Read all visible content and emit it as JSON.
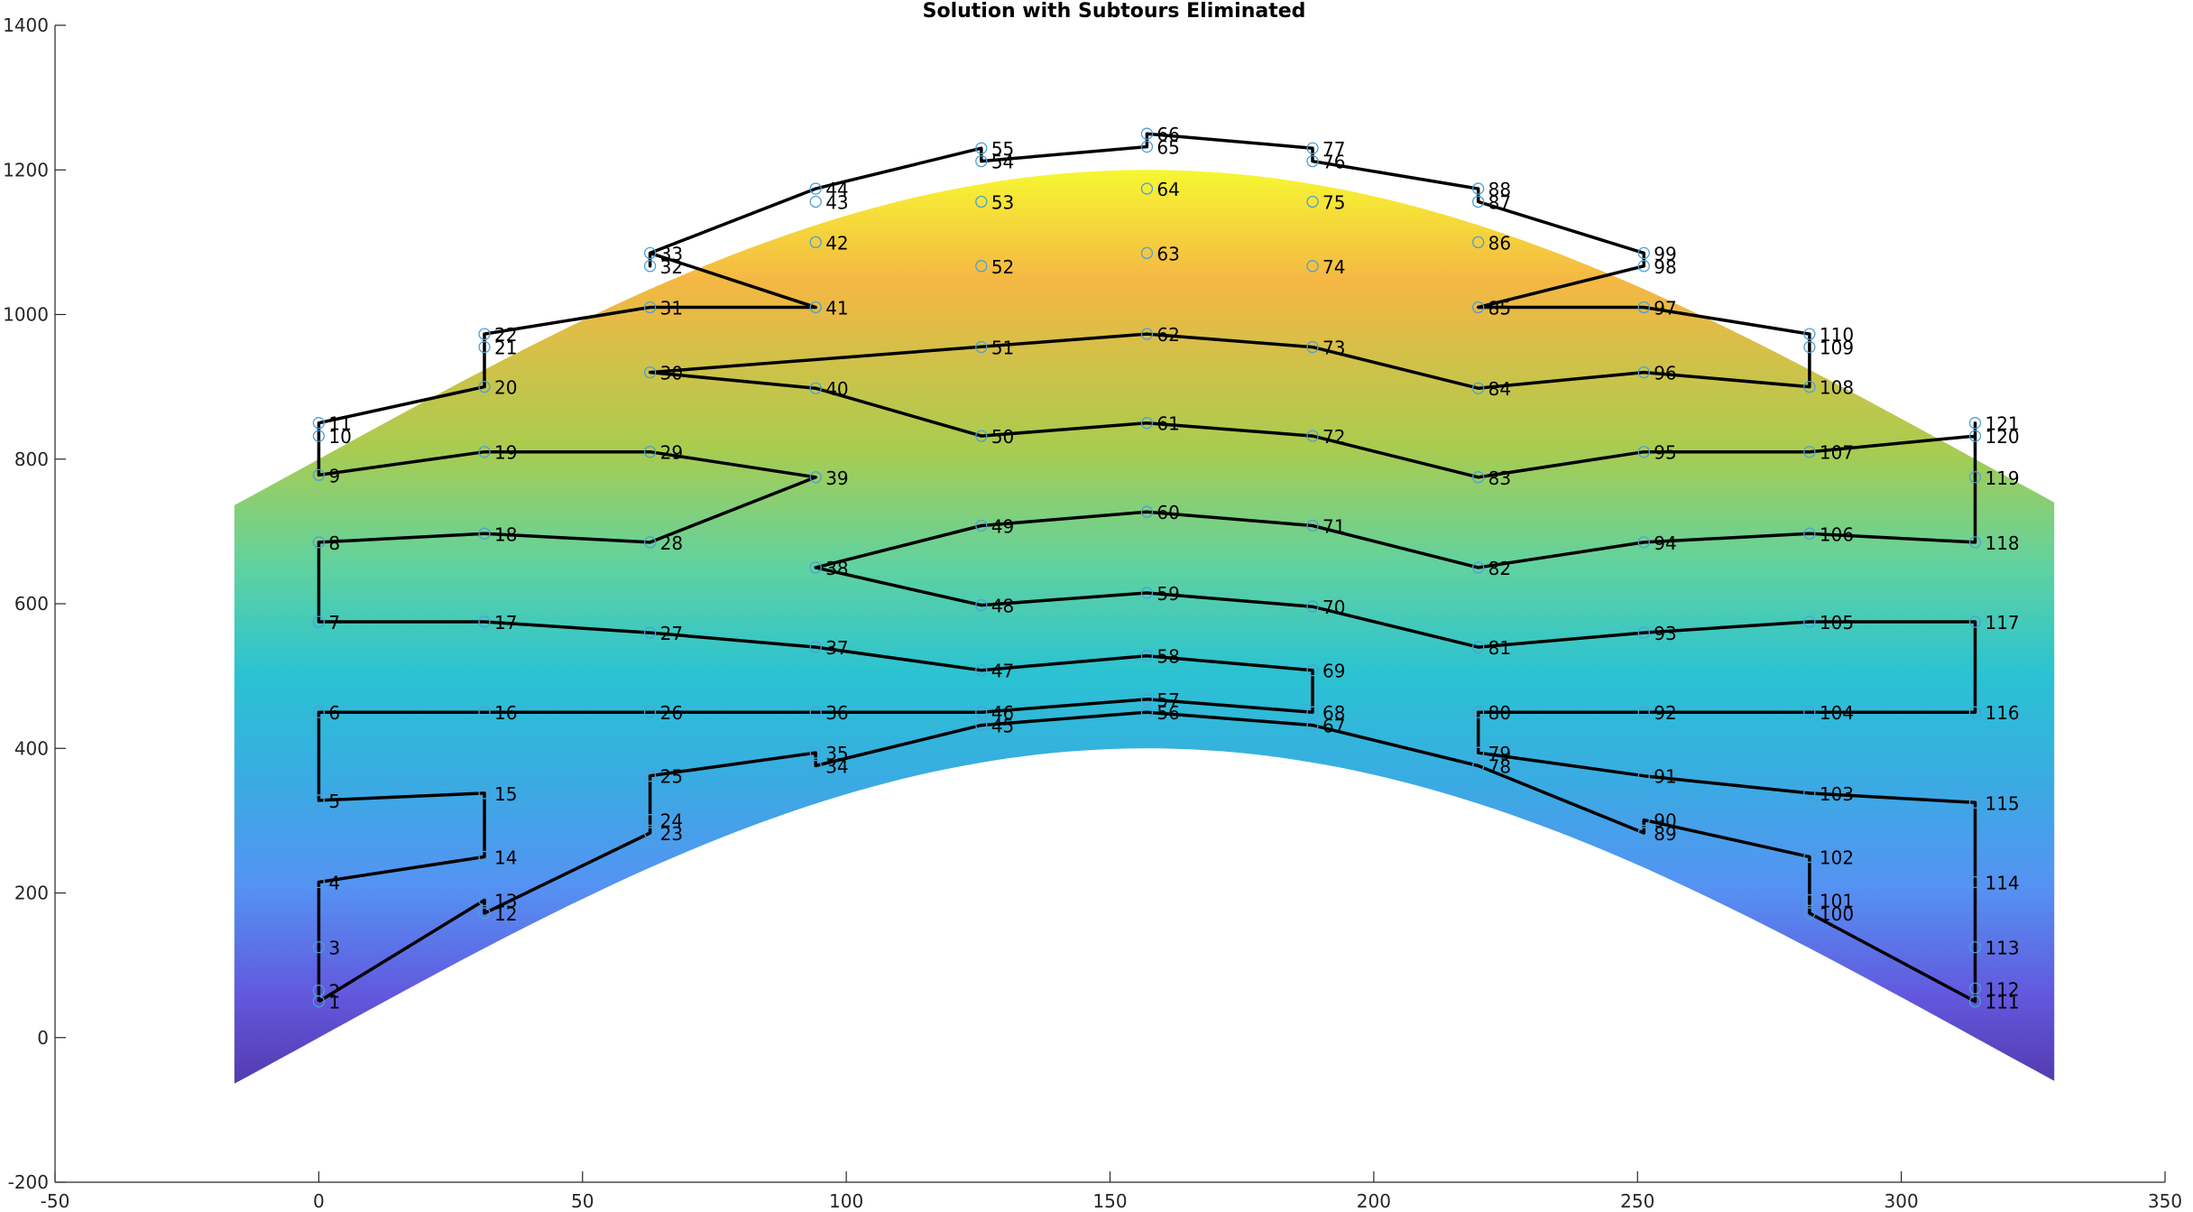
{
  "chart_data": {
    "type": "line",
    "title": "Solution with Subtours Eliminated",
    "xlabel": "",
    "ylabel": "",
    "xlim": [
      -50,
      350
    ],
    "ylim": [
      -200,
      1400
    ],
    "xticks": [
      -50,
      0,
      50,
      100,
      150,
      200,
      250,
      300,
      350
    ],
    "yticks": [
      -200,
      0,
      200,
      400,
      600,
      800,
      1000,
      1200,
      1400
    ],
    "grid": false,
    "colors": {
      "marker": "#4d9fd6",
      "path": "#000000",
      "surface_gradient": [
        "#f6f627",
        "#f4b33a",
        "#a6c945",
        "#58d09a",
        "#1fbfd0",
        "#2ea8e0",
        "#4c8df2",
        "#5a4fdc",
        "#4a2fa8"
      ]
    },
    "surface": {
      "x_range": [
        -16,
        329
      ],
      "lower_edge": "400*sin(pi*x/314)",
      "upper_edge": "400*sin(pi*x/314)+800"
    },
    "points": [
      {
        "id": "1",
        "x": 0,
        "y": 50
      },
      {
        "id": "2",
        "x": 0,
        "y": 65
      },
      {
        "id": "3",
        "x": 0,
        "y": 125
      },
      {
        "id": "4",
        "x": 0,
        "y": 215
      },
      {
        "id": "5",
        "x": 0,
        "y": 328
      },
      {
        "id": "6",
        "x": 0,
        "y": 450
      },
      {
        "id": "7",
        "x": 0,
        "y": 575
      },
      {
        "id": "8",
        "x": 0,
        "y": 685
      },
      {
        "id": "9",
        "x": 0,
        "y": 778
      },
      {
        "id": "10",
        "x": 0,
        "y": 832
      },
      {
        "id": "11",
        "x": 0,
        "y": 850
      },
      {
        "id": "12",
        "x": 31.4,
        "y": 172
      },
      {
        "id": "13",
        "x": 31.4,
        "y": 190
      },
      {
        "id": "14",
        "x": 31.4,
        "y": 250
      },
      {
        "id": "15",
        "x": 31.4,
        "y": 338
      },
      {
        "id": "16",
        "x": 31.4,
        "y": 450
      },
      {
        "id": "17",
        "x": 31.4,
        "y": 575
      },
      {
        "id": "18",
        "x": 31.4,
        "y": 697
      },
      {
        "id": "19",
        "x": 31.4,
        "y": 810
      },
      {
        "id": "20",
        "x": 31.4,
        "y": 900
      },
      {
        "id": "21",
        "x": 31.4,
        "y": 955
      },
      {
        "id": "22",
        "x": 31.4,
        "y": 973
      },
      {
        "id": "23",
        "x": 62.8,
        "y": 283
      },
      {
        "id": "24",
        "x": 62.8,
        "y": 301
      },
      {
        "id": "25",
        "x": 62.8,
        "y": 362
      },
      {
        "id": "26",
        "x": 62.8,
        "y": 450
      },
      {
        "id": "27",
        "x": 62.8,
        "y": 560
      },
      {
        "id": "28",
        "x": 62.8,
        "y": 685
      },
      {
        "id": "29",
        "x": 62.8,
        "y": 810
      },
      {
        "id": "30",
        "x": 62.8,
        "y": 920
      },
      {
        "id": "31",
        "x": 62.8,
        "y": 1010
      },
      {
        "id": "32",
        "x": 62.8,
        "y": 1067
      },
      {
        "id": "33",
        "x": 62.8,
        "y": 1085
      },
      {
        "id": "34",
        "x": 94.2,
        "y": 376
      },
      {
        "id": "35",
        "x": 94.2,
        "y": 394
      },
      {
        "id": "36",
        "x": 94.2,
        "y": 450
      },
      {
        "id": "37",
        "x": 94.2,
        "y": 540
      },
      {
        "id": "38",
        "x": 94.2,
        "y": 650
      },
      {
        "id": "39",
        "x": 94.2,
        "y": 775
      },
      {
        "id": "40",
        "x": 94.2,
        "y": 898
      },
      {
        "id": "41",
        "x": 94.2,
        "y": 1010
      },
      {
        "id": "42",
        "x": 94.2,
        "y": 1100
      },
      {
        "id": "43",
        "x": 94.2,
        "y": 1156
      },
      {
        "id": "44",
        "x": 94.2,
        "y": 1174
      },
      {
        "id": "45",
        "x": 125.6,
        "y": 432
      },
      {
        "id": "46",
        "x": 125.6,
        "y": 450
      },
      {
        "id": "47",
        "x": 125.6,
        "y": 508
      },
      {
        "id": "48",
        "x": 125.6,
        "y": 598
      },
      {
        "id": "49",
        "x": 125.6,
        "y": 708
      },
      {
        "id": "50",
        "x": 125.6,
        "y": 832
      },
      {
        "id": "51",
        "x": 125.6,
        "y": 955
      },
      {
        "id": "52",
        "x": 125.6,
        "y": 1067
      },
      {
        "id": "53",
        "x": 125.6,
        "y": 1156
      },
      {
        "id": "54",
        "x": 125.6,
        "y": 1212
      },
      {
        "id": "55",
        "x": 125.6,
        "y": 1230
      },
      {
        "id": "56",
        "x": 157,
        "y": 450
      },
      {
        "id": "57",
        "x": 157,
        "y": 468
      },
      {
        "id": "58",
        "x": 157,
        "y": 528
      },
      {
        "id": "59",
        "x": 157,
        "y": 615
      },
      {
        "id": "60",
        "x": 157,
        "y": 727
      },
      {
        "id": "61",
        "x": 157,
        "y": 850
      },
      {
        "id": "62",
        "x": 157,
        "y": 973
      },
      {
        "id": "63",
        "x": 157,
        "y": 1085
      },
      {
        "id": "64",
        "x": 157,
        "y": 1174
      },
      {
        "id": "65",
        "x": 157,
        "y": 1232
      },
      {
        "id": "66",
        "x": 157,
        "y": 1250
      },
      {
        "id": "67",
        "x": 188.4,
        "y": 432
      },
      {
        "id": "68",
        "x": 188.4,
        "y": 450
      },
      {
        "id": "69",
        "x": 188.4,
        "y": 508
      },
      {
        "id": "70",
        "x": 188.4,
        "y": 596
      },
      {
        "id": "71",
        "x": 188.4,
        "y": 708
      },
      {
        "id": "72",
        "x": 188.4,
        "y": 832
      },
      {
        "id": "73",
        "x": 188.4,
        "y": 955
      },
      {
        "id": "74",
        "x": 188.4,
        "y": 1067
      },
      {
        "id": "75",
        "x": 188.4,
        "y": 1156
      },
      {
        "id": "76",
        "x": 188.4,
        "y": 1212
      },
      {
        "id": "77",
        "x": 188.4,
        "y": 1230
      },
      {
        "id": "78",
        "x": 219.8,
        "y": 376
      },
      {
        "id": "79",
        "x": 219.8,
        "y": 394
      },
      {
        "id": "80",
        "x": 219.8,
        "y": 450
      },
      {
        "id": "81",
        "x": 219.8,
        "y": 540
      },
      {
        "id": "82",
        "x": 219.8,
        "y": 650
      },
      {
        "id": "83",
        "x": 219.8,
        "y": 775
      },
      {
        "id": "84",
        "x": 219.8,
        "y": 898
      },
      {
        "id": "85",
        "x": 219.8,
        "y": 1010
      },
      {
        "id": "86",
        "x": 219.8,
        "y": 1100
      },
      {
        "id": "87",
        "x": 219.8,
        "y": 1156
      },
      {
        "id": "88",
        "x": 219.8,
        "y": 1174
      },
      {
        "id": "89",
        "x": 251.2,
        "y": 283
      },
      {
        "id": "90",
        "x": 251.2,
        "y": 301
      },
      {
        "id": "91",
        "x": 251.2,
        "y": 362
      },
      {
        "id": "92",
        "x": 251.2,
        "y": 450
      },
      {
        "id": "93",
        "x": 251.2,
        "y": 560
      },
      {
        "id": "94",
        "x": 251.2,
        "y": 685
      },
      {
        "id": "95",
        "x": 251.2,
        "y": 810
      },
      {
        "id": "96",
        "x": 251.2,
        "y": 920
      },
      {
        "id": "97",
        "x": 251.2,
        "y": 1010
      },
      {
        "id": "98",
        "x": 251.2,
        "y": 1067
      },
      {
        "id": "99",
        "x": 251.2,
        "y": 1085
      },
      {
        "id": "100",
        "x": 282.6,
        "y": 172
      },
      {
        "id": "101",
        "x": 282.6,
        "y": 190
      },
      {
        "id": "102",
        "x": 282.6,
        "y": 250
      },
      {
        "id": "103",
        "x": 282.6,
        "y": 338
      },
      {
        "id": "104",
        "x": 282.6,
        "y": 450
      },
      {
        "id": "105",
        "x": 282.6,
        "y": 575
      },
      {
        "id": "106",
        "x": 282.6,
        "y": 697
      },
      {
        "id": "107",
        "x": 282.6,
        "y": 810
      },
      {
        "id": "108",
        "x": 282.6,
        "y": 900
      },
      {
        "id": "109",
        "x": 282.6,
        "y": 955
      },
      {
        "id": "110",
        "x": 282.6,
        "y": 973
      },
      {
        "id": "111",
        "x": 314,
        "y": 50
      },
      {
        "id": "112",
        "x": 314,
        "y": 68
      },
      {
        "id": "113",
        "x": 314,
        "y": 125
      },
      {
        "id": "114",
        "x": 314,
        "y": 215
      },
      {
        "id": "115",
        "x": 314,
        "y": 325
      },
      {
        "id": "116",
        "x": 314,
        "y": 450
      },
      {
        "id": "117",
        "x": 314,
        "y": 575
      },
      {
        "id": "118",
        "x": 314,
        "y": 685
      },
      {
        "id": "119",
        "x": 314,
        "y": 775
      },
      {
        "id": "120",
        "x": 314,
        "y": 832
      },
      {
        "id": "121",
        "x": 314,
        "y": 850
      }
    ],
    "tour": [
      "1",
      "2",
      "3",
      "4",
      "14",
      "15",
      "5",
      "6",
      "16",
      "26",
      "36",
      "46",
      "57",
      "68",
      "69",
      "58",
      "47",
      "37",
      "27",
      "17",
      "7",
      "8",
      "18",
      "28",
      "39",
      "29",
      "19",
      "9",
      "10",
      "11",
      "20",
      "21",
      "22",
      "31",
      "41",
      "33",
      "32",
      "33",
      "44",
      "55",
      "54",
      "65",
      "66",
      "77",
      "76",
      "88",
      "87",
      "99",
      "98",
      "85",
      "97",
      "110",
      "109",
      "108",
      "96",
      "84",
      "73",
      "62",
      "30",
      "40",
      "50",
      "61",
      "72",
      "83",
      "95",
      "107",
      "120",
      "121",
      "119",
      "118",
      "106",
      "94",
      "82",
      "71",
      "60",
      "49",
      "38",
      "48",
      "59",
      "70",
      "81",
      "93",
      "105",
      "117",
      "116",
      "104",
      "92",
      "80",
      "79",
      "91",
      "103",
      "115",
      "114",
      "113",
      "112",
      "111",
      "100",
      "101",
      "102",
      "90",
      "89",
      "78",
      "67",
      "56",
      "45",
      "34",
      "35",
      "25",
      "24",
      "23",
      "12",
      "13",
      "1"
    ]
  }
}
